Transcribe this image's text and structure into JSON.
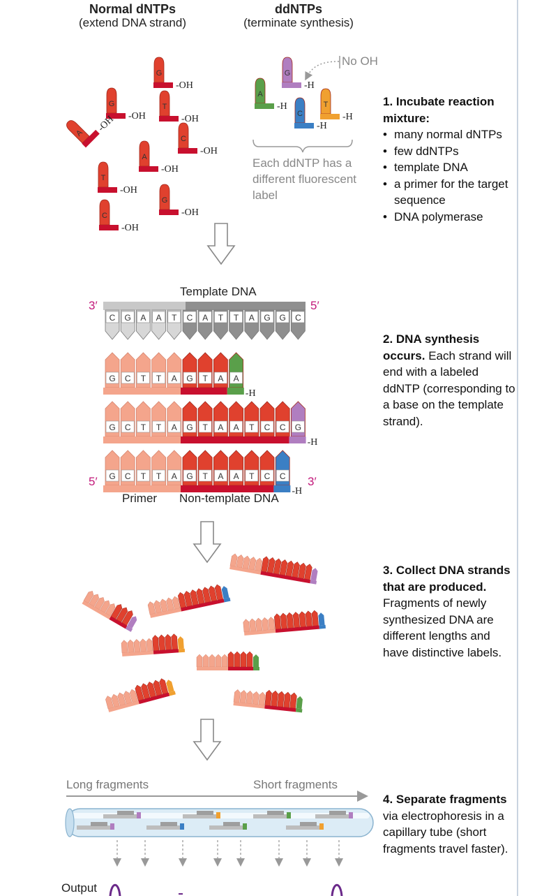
{
  "headers": {
    "normal_title": "Normal dNTPs",
    "normal_sub": "(extend DNA strand)",
    "dd_title": "ddNTPs",
    "dd_sub": "(terminate synthesis)"
  },
  "labels": {
    "oh": "-OH",
    "h": "-H",
    "no_oh": "No OH",
    "note": "Each ddNTP has a different fluorescent label",
    "template_dna": "Template DNA",
    "three_prime": "3′",
    "five_prime": "5′",
    "primer": "Primer",
    "non_template": "Non-template DNA",
    "long_fragments": "Long fragments",
    "short_fragments": "Short fragments",
    "output": "Output"
  },
  "steps": {
    "s1_title": "1. Incubate reaction mixture:",
    "s1_items": [
      "many normal dNTPs",
      "few ddNTPs",
      "template DNA",
      "a primer for the target sequence",
      "DNA polymerase"
    ],
    "s2_title": "2. DNA synthesis occurs.",
    "s2_text": "Each strand will end with a labeled ddNTP (corresponding to a base on the template strand).",
    "s3_title": "3. Collect DNA strands that are produced.",
    "s3_text": "Fragments of newly synthesized DNA are different lengths and have distinctive labels.",
    "s4_title": "4. Separate fragments",
    "s4_text": "via electrophoresis in a capillary tube (short fragments travel faster)."
  },
  "template_bases": [
    "C",
    "G",
    "A",
    "A",
    "T",
    "C",
    "A",
    "T",
    "T",
    "A",
    "G",
    "G",
    "C"
  ],
  "primer_bases": [
    "G",
    "C",
    "T",
    "T",
    "A"
  ],
  "strands": [
    {
      "bases": [
        "G",
        "T",
        "A",
        "A"
      ],
      "end_color": "#5a9f4a"
    },
    {
      "bases": [
        "G",
        "T",
        "A",
        "A",
        "T",
        "C",
        "C",
        "G"
      ],
      "end_color": "#b07ec0"
    },
    {
      "bases": [
        "G",
        "T",
        "A",
        "A",
        "T",
        "C",
        "C"
      ],
      "end_color": "#3b7fc4"
    }
  ],
  "dntps": [
    "G",
    "G",
    "T",
    "A",
    "C",
    "A",
    "T",
    "G",
    "C"
  ],
  "ddntps": [
    "A",
    "G",
    "C",
    "T"
  ],
  "colors": {
    "dntp_red": "#e0412e",
    "dntp_dark": "#c8102e",
    "primer_pink": "#f4a58c",
    "template_gray": "#a9a9a9",
    "dd_green": "#5a9f4a",
    "dd_purple": "#b07ec0",
    "dd_blue": "#3b7fc4",
    "dd_orange": "#f0a030",
    "magenta": "#c2187a"
  }
}
